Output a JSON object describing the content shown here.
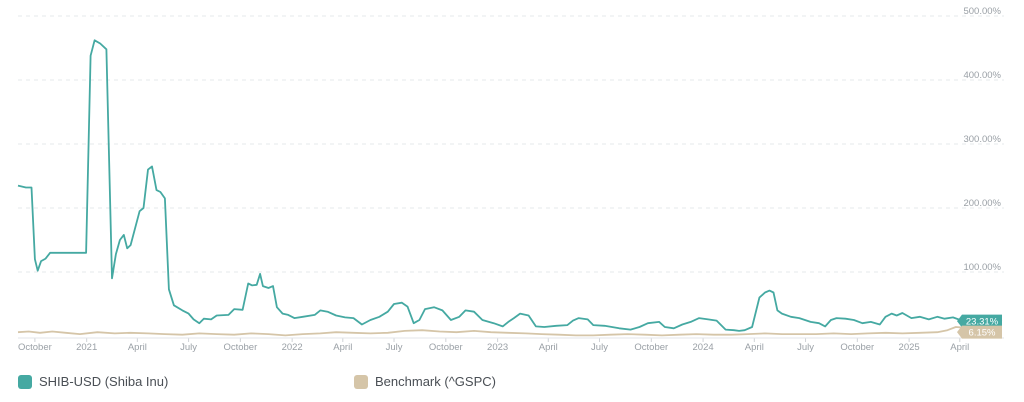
{
  "chart_data": {
    "type": "line",
    "y_unit": "%",
    "ylim": [
      0,
      500
    ],
    "y_ticks": [
      "100.00%",
      "200.00%",
      "300.00%",
      "400.00%",
      "500.00%"
    ],
    "x_ticks": [
      {
        "label": "October",
        "date": "2020-10-01"
      },
      {
        "label": "2021",
        "date": "2021-01-01"
      },
      {
        "label": "April",
        "date": "2021-04-01"
      },
      {
        "label": "July",
        "date": "2021-07-01"
      },
      {
        "label": "October",
        "date": "2021-10-01"
      },
      {
        "label": "2022",
        "date": "2022-01-01"
      },
      {
        "label": "April",
        "date": "2022-04-01"
      },
      {
        "label": "July",
        "date": "2022-07-01"
      },
      {
        "label": "October",
        "date": "2022-10-01"
      },
      {
        "label": "2023",
        "date": "2023-01-01"
      },
      {
        "label": "April",
        "date": "2023-04-01"
      },
      {
        "label": "July",
        "date": "2023-07-01"
      },
      {
        "label": "October",
        "date": "2023-10-01"
      },
      {
        "label": "2024",
        "date": "2024-01-01"
      },
      {
        "label": "April",
        "date": "2024-04-01"
      },
      {
        "label": "July",
        "date": "2024-07-01"
      },
      {
        "label": "October",
        "date": "2024-10-01"
      },
      {
        "label": "2025",
        "date": "2025-01-01"
      },
      {
        "label": "April",
        "date": "2025-04-01"
      }
    ],
    "x_range": [
      "2020-09-01",
      "2025-06-15"
    ],
    "grid": "horizontal-dashed",
    "legend_position": "bottom-left",
    "series": [
      {
        "name": "SHIB-USD (Shiba Inu)",
        "color": "#45a9a2",
        "last_label": "23.31%",
        "points": [
          [
            "2020-09-01",
            235
          ],
          [
            "2020-09-15",
            232
          ],
          [
            "2020-09-25",
            232
          ],
          [
            "2020-10-01",
            120
          ],
          [
            "2020-10-06",
            102
          ],
          [
            "2020-10-12",
            117
          ],
          [
            "2020-10-20",
            121
          ],
          [
            "2020-10-28",
            130
          ],
          [
            "2020-12-31",
            130
          ],
          [
            "2021-01-08",
            438
          ],
          [
            "2021-01-15",
            462
          ],
          [
            "2021-01-25",
            457
          ],
          [
            "2021-02-05",
            448
          ],
          [
            "2021-02-15",
            90
          ],
          [
            "2021-02-22",
            128
          ],
          [
            "2021-03-01",
            150
          ],
          [
            "2021-03-08",
            158
          ],
          [
            "2021-03-14",
            137
          ],
          [
            "2021-03-20",
            142
          ],
          [
            "2021-04-05",
            195
          ],
          [
            "2021-04-12",
            200
          ],
          [
            "2021-04-20",
            260
          ],
          [
            "2021-04-27",
            265
          ],
          [
            "2021-05-05",
            228
          ],
          [
            "2021-05-12",
            225
          ],
          [
            "2021-05-20",
            215
          ],
          [
            "2021-05-27",
            73
          ],
          [
            "2021-06-05",
            48
          ],
          [
            "2021-06-20",
            40
          ],
          [
            "2021-07-01",
            35
          ],
          [
            "2021-07-10",
            26
          ],
          [
            "2021-07-20",
            20
          ],
          [
            "2021-07-28",
            27
          ],
          [
            "2021-08-10",
            26
          ],
          [
            "2021-08-20",
            32
          ],
          [
            "2021-09-10",
            33
          ],
          [
            "2021-09-20",
            42
          ],
          [
            "2021-10-05",
            41
          ],
          [
            "2021-10-15",
            82
          ],
          [
            "2021-10-22",
            79
          ],
          [
            "2021-10-30",
            80
          ],
          [
            "2021-11-05",
            97
          ],
          [
            "2021-11-10",
            78
          ],
          [
            "2021-11-20",
            75
          ],
          [
            "2021-11-28",
            78
          ],
          [
            "2021-12-05",
            45
          ],
          [
            "2021-12-15",
            35
          ],
          [
            "2021-12-25",
            33
          ],
          [
            "2022-01-05",
            28
          ],
          [
            "2022-01-20",
            30
          ],
          [
            "2022-02-10",
            33
          ],
          [
            "2022-02-20",
            40
          ],
          [
            "2022-03-05",
            38
          ],
          [
            "2022-03-20",
            32
          ],
          [
            "2022-04-05",
            29
          ],
          [
            "2022-04-20",
            28
          ],
          [
            "2022-05-05",
            18
          ],
          [
            "2022-05-20",
            25
          ],
          [
            "2022-06-05",
            30
          ],
          [
            "2022-06-20",
            38
          ],
          [
            "2022-07-01",
            50
          ],
          [
            "2022-07-15",
            52
          ],
          [
            "2022-07-25",
            46
          ],
          [
            "2022-08-05",
            20
          ],
          [
            "2022-08-15",
            25
          ],
          [
            "2022-08-25",
            42
          ],
          [
            "2022-09-10",
            45
          ],
          [
            "2022-09-25",
            40
          ],
          [
            "2022-10-10",
            25
          ],
          [
            "2022-10-25",
            30
          ],
          [
            "2022-11-05",
            40
          ],
          [
            "2022-11-20",
            38
          ],
          [
            "2022-12-05",
            25
          ],
          [
            "2022-12-25",
            20
          ],
          [
            "2023-01-10",
            15
          ],
          [
            "2023-01-20",
            22
          ],
          [
            "2023-01-30",
            28
          ],
          [
            "2023-02-10",
            35
          ],
          [
            "2023-02-25",
            32
          ],
          [
            "2023-03-10",
            15
          ],
          [
            "2023-03-25",
            14
          ],
          [
            "2023-04-15",
            16
          ],
          [
            "2023-05-05",
            17
          ],
          [
            "2023-05-15",
            24
          ],
          [
            "2023-05-25",
            28
          ],
          [
            "2023-06-10",
            26
          ],
          [
            "2023-06-20",
            17
          ],
          [
            "2023-07-10",
            16
          ],
          [
            "2023-08-05",
            12
          ],
          [
            "2023-08-25",
            10
          ],
          [
            "2023-09-10",
            14
          ],
          [
            "2023-09-25",
            20
          ],
          [
            "2023-10-15",
            22
          ],
          [
            "2023-10-25",
            14
          ],
          [
            "2023-11-10",
            12
          ],
          [
            "2023-11-25",
            18
          ],
          [
            "2023-12-10",
            22
          ],
          [
            "2023-12-25",
            28
          ],
          [
            "2024-01-10",
            26
          ],
          [
            "2024-01-25",
            24
          ],
          [
            "2024-02-10",
            10
          ],
          [
            "2024-02-25",
            9
          ],
          [
            "2024-03-05",
            8
          ],
          [
            "2024-03-15",
            9
          ],
          [
            "2024-03-28",
            14
          ],
          [
            "2024-04-10",
            60
          ],
          [
            "2024-04-20",
            68
          ],
          [
            "2024-04-28",
            71
          ],
          [
            "2024-05-05",
            68
          ],
          [
            "2024-05-12",
            40
          ],
          [
            "2024-05-20",
            35
          ],
          [
            "2024-06-05",
            30
          ],
          [
            "2024-06-20",
            28
          ],
          [
            "2024-07-10",
            22
          ],
          [
            "2024-07-25",
            20
          ],
          [
            "2024-08-05",
            15
          ],
          [
            "2024-08-15",
            25
          ],
          [
            "2024-08-25",
            28
          ],
          [
            "2024-09-10",
            27
          ],
          [
            "2024-09-25",
            25
          ],
          [
            "2024-10-10",
            20
          ],
          [
            "2024-10-25",
            22
          ],
          [
            "2024-11-10",
            18
          ],
          [
            "2024-11-20",
            30
          ],
          [
            "2024-12-01",
            35
          ],
          [
            "2024-12-10",
            32
          ],
          [
            "2024-12-20",
            36
          ],
          [
            "2025-01-05",
            28
          ],
          [
            "2025-01-20",
            30
          ],
          [
            "2025-02-05",
            26
          ],
          [
            "2025-02-20",
            30
          ],
          [
            "2025-03-05",
            27
          ],
          [
            "2025-03-20",
            29
          ],
          [
            "2025-04-05",
            24
          ],
          [
            "2025-04-20",
            22
          ],
          [
            "2025-05-05",
            25
          ],
          [
            "2025-05-20",
            23
          ],
          [
            "2025-06-05",
            24
          ],
          [
            "2025-06-15",
            23.31
          ]
        ]
      },
      {
        "name": "Benchmark (^GSPC)",
        "color": "#d5c5a8",
        "last_label": "6.15%",
        "points": [
          [
            "2020-09-01",
            6
          ],
          [
            "2020-09-20",
            7
          ],
          [
            "2020-10-10",
            5
          ],
          [
            "2020-11-01",
            7
          ],
          [
            "2020-11-25",
            5
          ],
          [
            "2020-12-20",
            3
          ],
          [
            "2021-01-20",
            6
          ],
          [
            "2021-02-20",
            4
          ],
          [
            "2021-03-20",
            5
          ],
          [
            "2021-04-20",
            4
          ],
          [
            "2021-05-20",
            3
          ],
          [
            "2021-06-20",
            2
          ],
          [
            "2021-07-20",
            4
          ],
          [
            "2021-08-20",
            3
          ],
          [
            "2021-09-20",
            2
          ],
          [
            "2021-10-20",
            4
          ],
          [
            "2021-11-20",
            3
          ],
          [
            "2021-12-20",
            1
          ],
          [
            "2022-01-20",
            3
          ],
          [
            "2022-02-20",
            4
          ],
          [
            "2022-03-20",
            6
          ],
          [
            "2022-04-20",
            5
          ],
          [
            "2022-05-20",
            4
          ],
          [
            "2022-06-20",
            5
          ],
          [
            "2022-07-20",
            8
          ],
          [
            "2022-08-20",
            9
          ],
          [
            "2022-09-20",
            7
          ],
          [
            "2022-10-20",
            6
          ],
          [
            "2022-11-20",
            8
          ],
          [
            "2022-12-20",
            6
          ],
          [
            "2023-01-20",
            5
          ],
          [
            "2023-02-20",
            4
          ],
          [
            "2023-03-20",
            3
          ],
          [
            "2023-04-20",
            2
          ],
          [
            "2023-05-20",
            1
          ],
          [
            "2023-06-20",
            1
          ],
          [
            "2023-07-20",
            2
          ],
          [
            "2023-08-20",
            3
          ],
          [
            "2023-09-20",
            2
          ],
          [
            "2023-10-20",
            1
          ],
          [
            "2023-11-20",
            2
          ],
          [
            "2023-12-20",
            3
          ],
          [
            "2024-01-20",
            2
          ],
          [
            "2024-02-20",
            2
          ],
          [
            "2024-03-20",
            3
          ],
          [
            "2024-04-20",
            4
          ],
          [
            "2024-05-20",
            3
          ],
          [
            "2024-06-20",
            3
          ],
          [
            "2024-07-20",
            3
          ],
          [
            "2024-08-20",
            4
          ],
          [
            "2024-09-20",
            3
          ],
          [
            "2024-10-20",
            4
          ],
          [
            "2024-11-20",
            5
          ],
          [
            "2024-12-20",
            4
          ],
          [
            "2025-01-20",
            5
          ],
          [
            "2025-02-20",
            6
          ],
          [
            "2025-03-10",
            9
          ],
          [
            "2025-03-25",
            14
          ],
          [
            "2025-04-10",
            13
          ],
          [
            "2025-04-20",
            8
          ],
          [
            "2025-05-05",
            7
          ],
          [
            "2025-05-20",
            6
          ],
          [
            "2025-06-15",
            6.15
          ]
        ]
      }
    ]
  },
  "legend": {
    "items": [
      {
        "label": "SHIB-USD (Shiba Inu)",
        "color": "#45a9a2"
      },
      {
        "label": "Benchmark (^GSPC)",
        "color": "#d5c5a8"
      }
    ]
  }
}
